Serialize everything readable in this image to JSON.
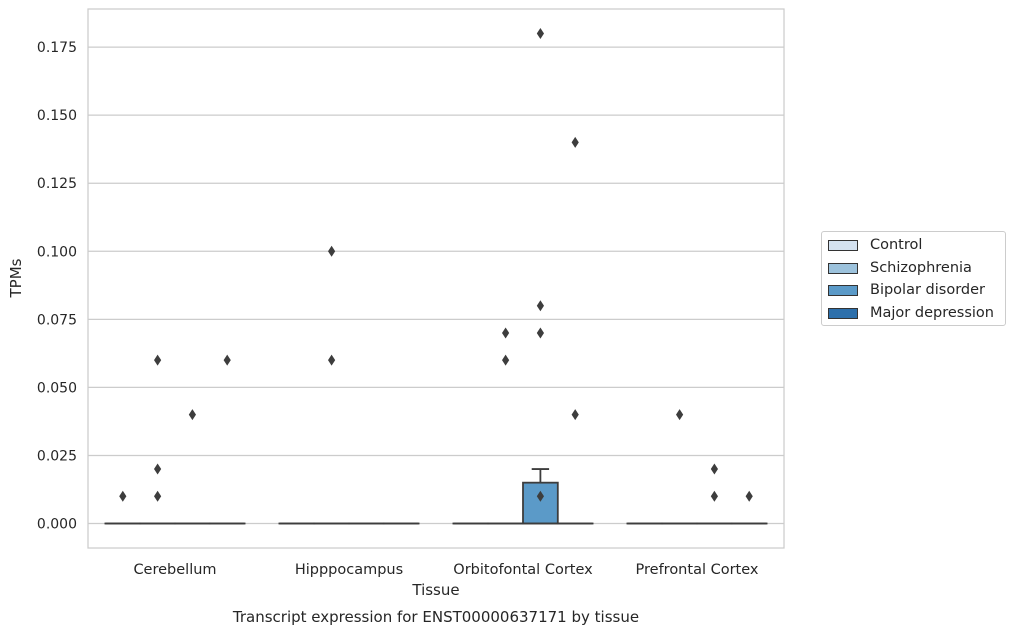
{
  "chart_data": {
    "type": "box",
    "title": "Transcript expression for ENST00000637171 by tissue",
    "xlabel": "Tissue",
    "ylabel": "TPMs",
    "ylim": [
      -0.009,
      0.189
    ],
    "yticks": [
      "0.000",
      "0.025",
      "0.050",
      "0.075",
      "0.100",
      "0.125",
      "0.150",
      "0.175"
    ],
    "grid": "horizontal",
    "legend_position": "right",
    "categories": [
      "Cerebellum",
      "Hipppocampus",
      "Orbitofontal Cortex",
      "Prefrontal Cortex"
    ],
    "series": [
      {
        "name": "Control",
        "color": "#d4e2f0",
        "boxes": [
          {
            "q1": 0,
            "median": 0,
            "q3": 0,
            "whisker_low": 0,
            "whisker_high": 0,
            "outliers": [
              0.01
            ]
          },
          {
            "q1": 0,
            "median": 0,
            "q3": 0,
            "whisker_low": 0,
            "whisker_high": 0,
            "outliers": []
          },
          {
            "q1": 0,
            "median": 0,
            "q3": 0,
            "whisker_low": 0,
            "whisker_high": 0,
            "outliers": []
          },
          {
            "q1": 0,
            "median": 0,
            "q3": 0,
            "whisker_low": 0,
            "whisker_high": 0,
            "outliers": []
          }
        ]
      },
      {
        "name": "Schizophrenia",
        "color": "#9cc2dc",
        "boxes": [
          {
            "q1": 0,
            "median": 0,
            "q3": 0,
            "whisker_low": 0,
            "whisker_high": 0,
            "outliers": [
              0.06,
              0.02,
              0.01
            ]
          },
          {
            "q1": 0,
            "median": 0,
            "q3": 0,
            "whisker_low": 0,
            "whisker_high": 0,
            "outliers": [
              0.1,
              0.06
            ]
          },
          {
            "q1": 0,
            "median": 0,
            "q3": 0,
            "whisker_low": 0,
            "whisker_high": 0,
            "outliers": [
              0.07,
              0.06
            ]
          },
          {
            "q1": 0,
            "median": 0,
            "q3": 0,
            "whisker_low": 0,
            "whisker_high": 0,
            "outliers": [
              0.04
            ]
          }
        ]
      },
      {
        "name": "Bipolar disorder",
        "color": "#5b9ac8",
        "boxes": [
          {
            "q1": 0,
            "median": 0,
            "q3": 0,
            "whisker_low": 0,
            "whisker_high": 0,
            "outliers": [
              0.04
            ]
          },
          {
            "q1": 0,
            "median": 0,
            "q3": 0,
            "whisker_low": 0,
            "whisker_high": 0,
            "outliers": []
          },
          {
            "q1": 0,
            "median": 0,
            "q3": 0.015,
            "whisker_low": 0,
            "whisker_high": 0.02,
            "outliers": [
              0.18,
              0.08,
              0.07,
              0.01
            ]
          },
          {
            "q1": 0,
            "median": 0,
            "q3": 0,
            "whisker_low": 0,
            "whisker_high": 0,
            "outliers": [
              0.02,
              0.01
            ]
          }
        ]
      },
      {
        "name": "Major depression",
        "color": "#2c6fab",
        "boxes": [
          {
            "q1": 0,
            "median": 0,
            "q3": 0,
            "whisker_low": 0,
            "whisker_high": 0,
            "outliers": [
              0.06
            ]
          },
          {
            "q1": 0,
            "median": 0,
            "q3": 0,
            "whisker_low": 0,
            "whisker_high": 0,
            "outliers": []
          },
          {
            "q1": 0,
            "median": 0,
            "q3": 0,
            "whisker_low": 0,
            "whisker_high": 0,
            "outliers": [
              0.14,
              0.04
            ]
          },
          {
            "q1": 0,
            "median": 0,
            "q3": 0,
            "whisker_low": 0,
            "whisker_high": 0,
            "outliers": [
              0.01
            ]
          }
        ]
      }
    ]
  }
}
